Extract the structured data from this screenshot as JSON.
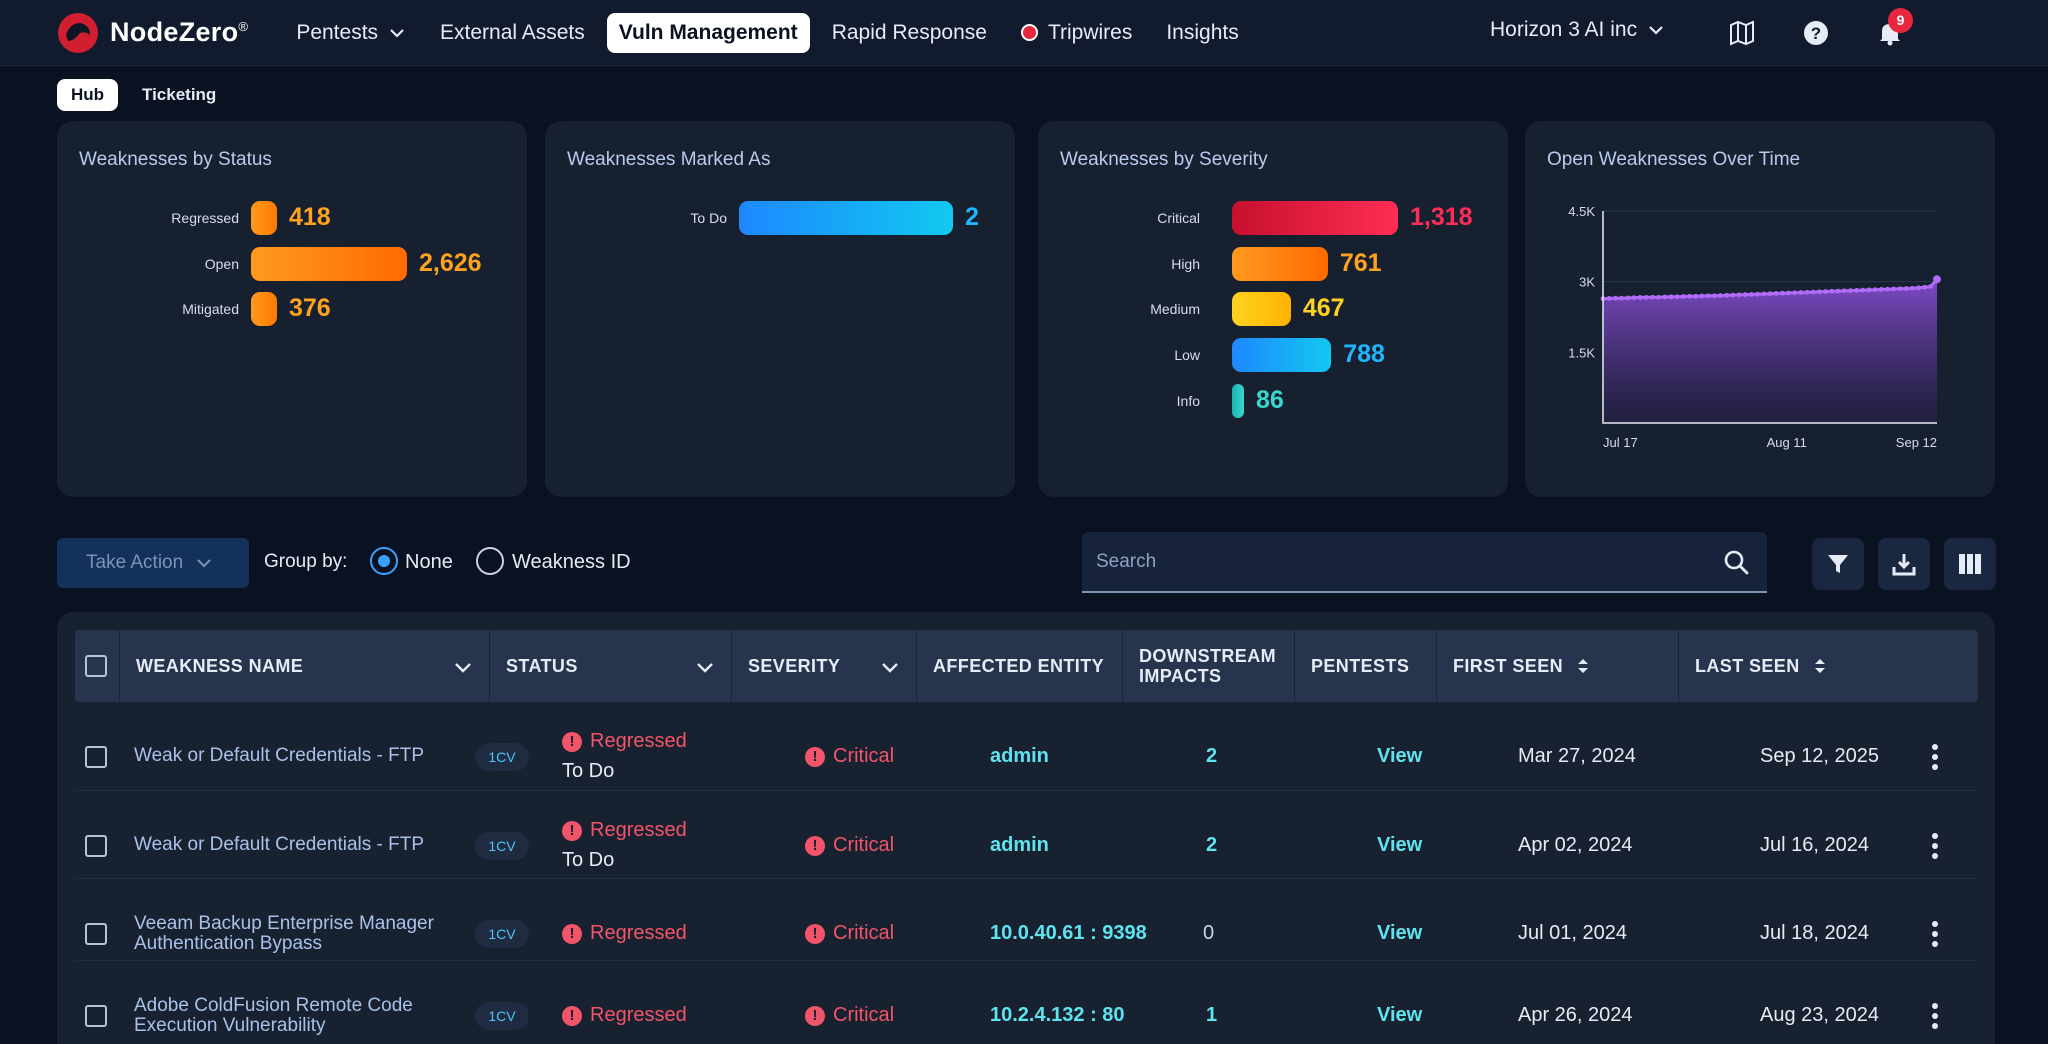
{
  "brand": {
    "name": "NodeZero",
    "mark": "®"
  },
  "nav": [
    {
      "label": "Pentests",
      "dropdown": true
    },
    {
      "label": "External Assets"
    },
    {
      "label": "Vuln Management",
      "active": true
    },
    {
      "label": "Rapid Response"
    },
    {
      "label": "Tripwires"
    },
    {
      "label": "Insights"
    }
  ],
  "org": "Horizon 3 AI inc",
  "notifications": {
    "count": "9"
  },
  "icons": {
    "map": "map-icon",
    "help": "help-icon",
    "bell": "bell-icon"
  },
  "subtabs": [
    "Hub",
    "Ticketing"
  ],
  "cards": {
    "status": {
      "title": "Weaknesses by Status",
      "items": [
        {
          "label": "Regressed",
          "value": 418,
          "display": "418"
        },
        {
          "label": "Open",
          "value": 2626,
          "display": "2,626"
        },
        {
          "label": "Mitigated",
          "value": 376,
          "display": "376"
        }
      ]
    },
    "marked": {
      "title": "Weaknesses Marked As",
      "items": [
        {
          "label": "To Do",
          "value": 2,
          "display": "2"
        }
      ]
    },
    "severity": {
      "title": "Weaknesses by Severity",
      "items": [
        {
          "label": "Critical",
          "value": 1318,
          "display": "1,318"
        },
        {
          "label": "High",
          "value": 761,
          "display": "761"
        },
        {
          "label": "Medium",
          "value": 467,
          "display": "467"
        },
        {
          "label": "Low",
          "value": 788,
          "display": "788"
        },
        {
          "label": "Info",
          "value": 86,
          "display": "86"
        }
      ]
    },
    "overtime": {
      "title": "Open Weaknesses Over Time"
    }
  },
  "chart_data": [
    {
      "type": "bar",
      "title": "Weaknesses by Status",
      "categories": [
        "Regressed",
        "Open",
        "Mitigated"
      ],
      "values": [
        418,
        2626,
        376
      ]
    },
    {
      "type": "bar",
      "title": "Weaknesses Marked As",
      "categories": [
        "To Do"
      ],
      "values": [
        2
      ]
    },
    {
      "type": "bar",
      "title": "Weaknesses by Severity",
      "categories": [
        "Critical",
        "High",
        "Medium",
        "Low",
        "Info"
      ],
      "values": [
        1318,
        761,
        467,
        788,
        86
      ]
    },
    {
      "type": "area",
      "title": "Open Weaknesses Over Time",
      "x_ticks": [
        "Jul 17",
        "Aug 11",
        "Sep 12"
      ],
      "y_ticks": [
        "1.5K",
        "3K",
        "4.5K"
      ],
      "ylim": [
        0,
        4500
      ],
      "grid": true,
      "values": [
        2640,
        2645,
        2650,
        2650,
        2655,
        2660,
        2665,
        2665,
        2670,
        2670,
        2675,
        2680,
        2680,
        2685,
        2690,
        2690,
        2695,
        2700,
        2700,
        2705,
        2710,
        2715,
        2720,
        2725,
        2730,
        2735,
        2740,
        2745,
        2750,
        2755,
        2760,
        2765,
        2770,
        2775,
        2780,
        2785,
        2790,
        2795,
        2800,
        2805,
        2810,
        2815,
        2820,
        2825,
        2830,
        2835,
        2840,
        2845,
        2850,
        2855,
        2860,
        2870,
        2880,
        2900,
        3050
      ]
    }
  ],
  "toolbar": {
    "take_action": "Take Action",
    "group_by": "Group by:",
    "group_options": [
      "None",
      "Weakness ID"
    ],
    "search_placeholder": "Search"
  },
  "table": {
    "columns": [
      "WEAKNESS NAME",
      "STATUS",
      "SEVERITY",
      "AFFECTED ENTITY",
      "DOWNSTREAM IMPACTS",
      "PENTESTS",
      "FIRST SEEN",
      "LAST SEEN"
    ],
    "rows": [
      {
        "name": "Weak or Default Credentials - FTP",
        "cve": "1CV",
        "status": "Regressed",
        "sub": "To Do",
        "severity": "Critical",
        "entity": "admin",
        "impacts": "2",
        "pentests": "View",
        "first": "Mar 27, 2024",
        "last": "Sep 12, 2025"
      },
      {
        "name": "Weak or Default Credentials - FTP",
        "cve": "1CV",
        "status": "Regressed",
        "sub": "To Do",
        "severity": "Critical",
        "entity": "admin",
        "impacts": "2",
        "pentests": "View",
        "first": "Apr 02, 2024",
        "last": "Jul 16, 2024"
      },
      {
        "name": "Veeam Backup Enterprise Manager Authentication Bypass",
        "cve": "1CV",
        "status": "Regressed",
        "sub": "",
        "severity": "Critical",
        "entity": "10.0.40.61 : 9398",
        "impacts": "0",
        "pentests": "View",
        "first": "Jul 01, 2024",
        "last": "Jul 18, 2024"
      },
      {
        "name": "Adobe ColdFusion Remote Code Execution Vulnerability",
        "cve": "1CV",
        "status": "Regressed",
        "sub": "",
        "severity": "Critical",
        "entity": "10.2.4.132 : 80",
        "impacts": "1",
        "pentests": "View",
        "first": "Apr 26, 2024",
        "last": "Aug 23, 2024"
      }
    ]
  }
}
